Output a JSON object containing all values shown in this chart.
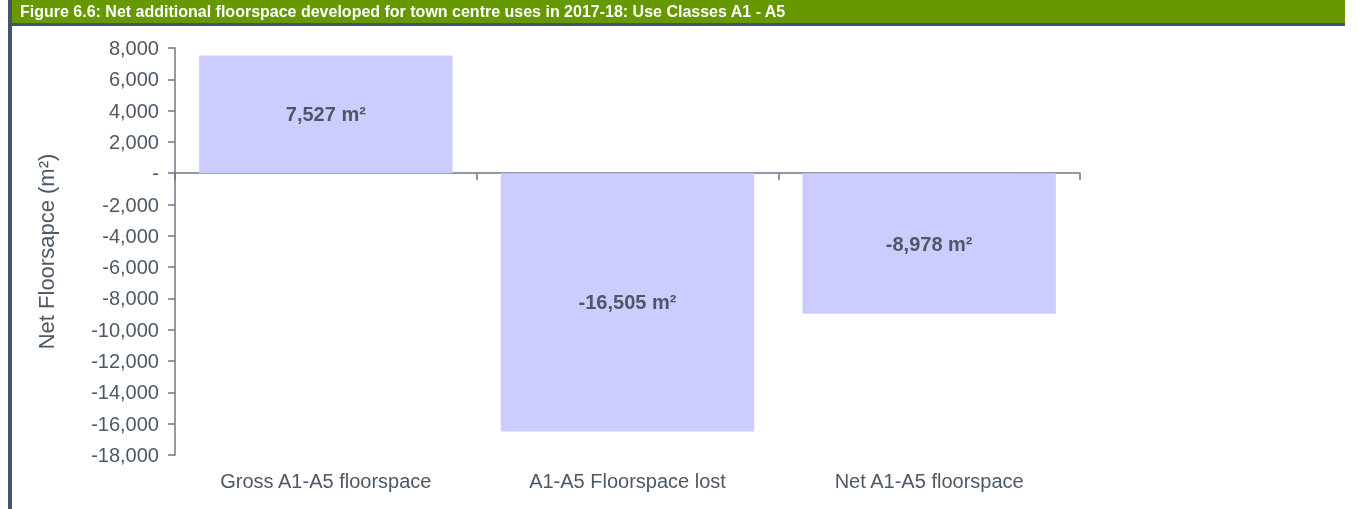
{
  "chart_data": {
    "type": "bar",
    "title": "Figure 6.6: Net additional floorspace developed for town centre uses in 2017-18: Use Classes A1 - A5",
    "ylabel": "Net Floorsapce (m²)",
    "categories": [
      "Gross A1-A5 floorspace",
      "A1-A5 Floorspace lost",
      "Net A1-A5 floorspace"
    ],
    "values": [
      7527,
      -16505,
      -8978
    ],
    "value_labels": [
      "7,527 m²",
      "-16,505 m²",
      "-8,978 m²"
    ],
    "color": "#ccccff",
    "ylim": [
      -18000,
      8000
    ],
    "yticks": [
      {
        "value": -18000,
        "label": "-18,000"
      },
      {
        "value": -16000,
        "label": "-16,000"
      },
      {
        "value": -14000,
        "label": "-14,000"
      },
      {
        "value": -12000,
        "label": "-12,000"
      },
      {
        "value": -10000,
        "label": "-10,000"
      },
      {
        "value": -8000,
        "label": "-8,000"
      },
      {
        "value": -6000,
        "label": "-6,000"
      },
      {
        "value": -4000,
        "label": "-4,000"
      },
      {
        "value": -2000,
        "label": "-2,000"
      },
      {
        "value": 0,
        "label": "-"
      },
      {
        "value": 2000,
        "label": "2,000"
      },
      {
        "value": 4000,
        "label": "4,000"
      },
      {
        "value": 6000,
        "label": "6,000"
      },
      {
        "value": 8000,
        "label": "8,000"
      }
    ]
  }
}
